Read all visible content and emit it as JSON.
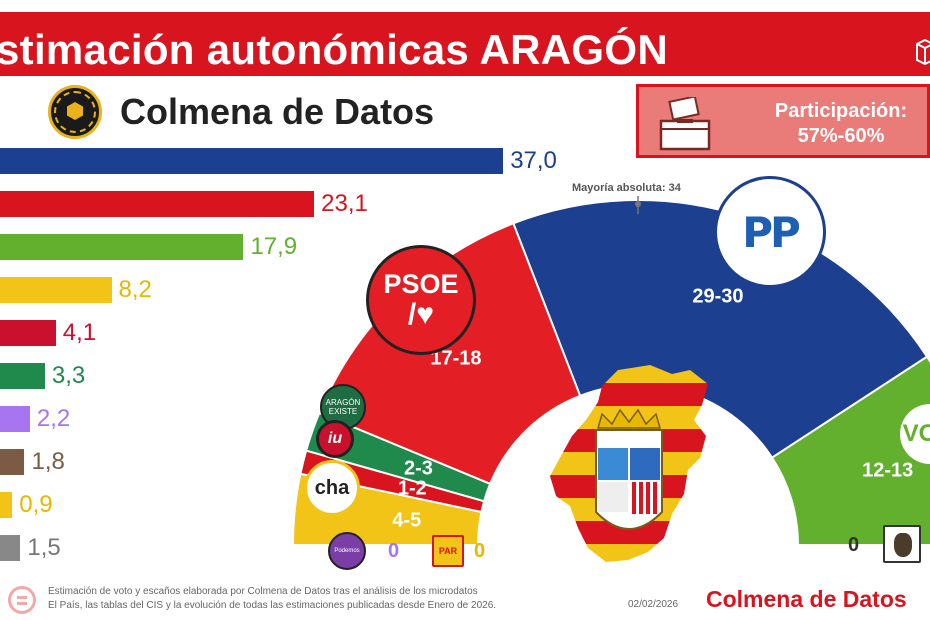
{
  "header": {
    "title": "stimación autonómicas ARAGÓN",
    "banner_color": "#d8141f"
  },
  "brand": {
    "name": "Colmena de Datos"
  },
  "participation": {
    "label": "Participación:",
    "range": "57%-60%"
  },
  "chart_data": [
    {
      "type": "bar",
      "orientation": "horizontal",
      "values": [
        37.0,
        23.1,
        17.9,
        8.2,
        4.1,
        3.3,
        2.2,
        1.8,
        0.9,
        1.5
      ],
      "labels": [
        "37,0",
        "23,1",
        "17,9",
        "8,2",
        "4,1",
        "3,3",
        "2,2",
        "1,8",
        "0,9",
        "1,5"
      ],
      "colors": [
        "#1c3f8f",
        "#d8141f",
        "#62b02e",
        "#f2c417",
        "#c9102c",
        "#1f8a4c",
        "#a875f0",
        "#7b5b43",
        "#f2c417",
        "#888888"
      ],
      "label_colors": [
        "#1c3f8f",
        "#d8141f",
        "#62b02e",
        "#e6b800",
        "#c9102c",
        "#1f8a4c",
        "#a875f0",
        "#7b5b43",
        "#e6b800",
        "#777777"
      ]
    },
    {
      "type": "hemicycle",
      "majority_label": "Mayoría absoluta: 34",
      "seats": [
        {
          "party": "CHA",
          "label": "4-5",
          "mid": 4.5,
          "color": "#f2c417"
        },
        {
          "party": "IU",
          "label": "1-2",
          "mid": 1.5,
          "color": "#d8141f"
        },
        {
          "party": "Aragón Existe",
          "label": "2-3",
          "mid": 2.5,
          "color": "#1f8a4c"
        },
        {
          "party": "PSOE",
          "label": "17-18",
          "mid": 17.5,
          "color": "#e31e24"
        },
        {
          "party": "PP",
          "label": "29-30",
          "mid": 29.5,
          "color": "#1c3f8f"
        },
        {
          "party": "VOX",
          "label": "12-13",
          "mid": 12.5,
          "color": "#62b02e"
        }
      ],
      "zero_parties": [
        {
          "party": "Podemos",
          "value": "0",
          "color": "#a875f0"
        },
        {
          "party": "PAR",
          "value": "0",
          "color": "#e6b800"
        },
        {
          "party": "Teruel Existe",
          "value": "0",
          "color": "#333333"
        }
      ]
    }
  ],
  "logos": {
    "psoe_line1": "PSOE",
    "psoe_line2": "/♥",
    "pp": "PP",
    "vox": "VO",
    "aragon_existe_1": "ARAGÓN",
    "aragon_existe_2": "EXISTE",
    "iu": "iu",
    "cha": "cha",
    "podemos": "Podemos",
    "par": "PAR"
  },
  "footer": {
    "line1": "Estimación de voto y escaños elaborada por Colmena de Datos tras el análisis de los microdatos",
    "line2": "El País, las tablas del CIS y la evolución de todas las estimaciones publicadas desde Enero de 2026.",
    "date": "02/02/2026",
    "brand": "Colmena de Datos"
  }
}
